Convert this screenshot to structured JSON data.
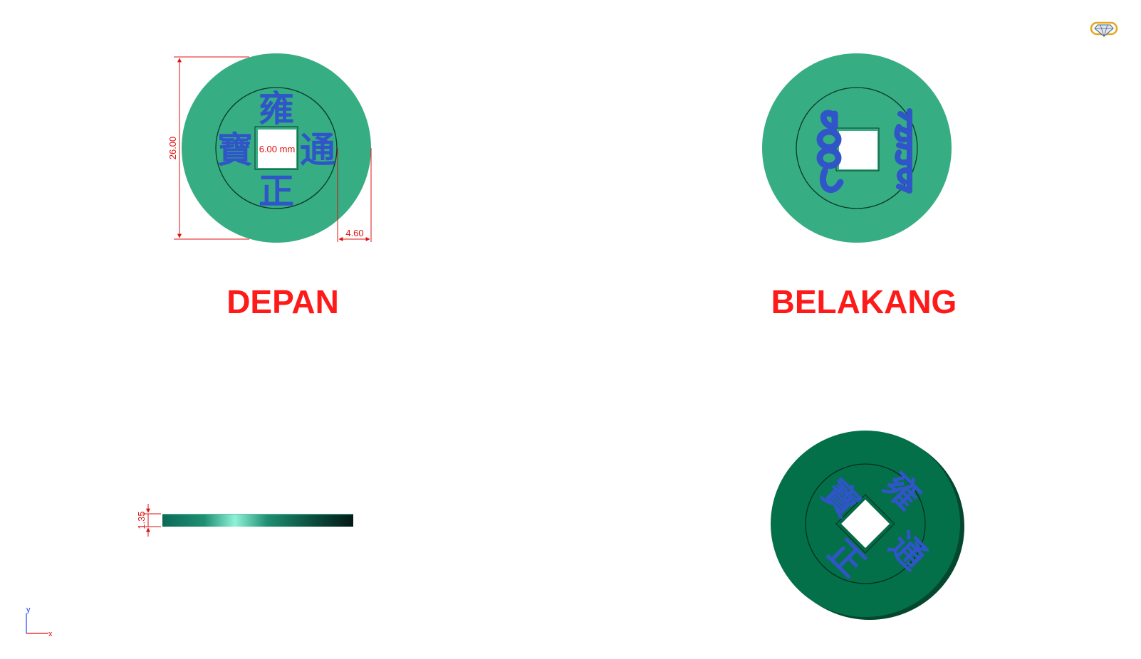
{
  "colors": {
    "coin_face": "#37ad84",
    "coin_dark": "#04704a",
    "glyph": "#2f55c8",
    "dimension": "#e01010",
    "label": "#ff1a1a",
    "axis_y": "#2244ee",
    "axis_x": "#e01010"
  },
  "views": {
    "front_label": "DEPAN",
    "back_label": "BELAKANG"
  },
  "front_face": {
    "glyph_top": "雍",
    "glyph_bottom": "正",
    "glyph_right": "通",
    "glyph_left": "寶",
    "hole_dimension": "6.00 mm",
    "diameter_dimension": "26.00",
    "rim_dimension": "4.60"
  },
  "back_face": {
    "glyph_left_name": "manchu-script-left",
    "glyph_right_name": "manchu-script-right"
  },
  "side_view": {
    "thickness_dimension": "1.35"
  },
  "axes": {
    "y_label": "y",
    "x_label": "x"
  },
  "icons": {
    "top_right": "render-mode-gem-icon"
  }
}
